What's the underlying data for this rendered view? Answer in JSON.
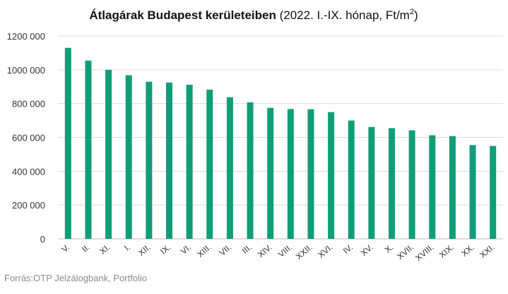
{
  "chart_data": {
    "type": "bar",
    "title": "Átlagárak Budapest kerületeiben",
    "subtitle": "(2022. I.-IX. hónap, Ft/m",
    "subtitle_sup": "2",
    "subtitle_end": ")",
    "xlabel": "",
    "ylabel": "",
    "ylim": [
      0,
      1200000
    ],
    "yticks": [
      0,
      200000,
      400000,
      600000,
      800000,
      1000000,
      1200000
    ],
    "ytick_labels": [
      "0",
      "200 000",
      "400 000",
      "600 000",
      "800 000",
      "1000 000",
      "1200 000"
    ],
    "grid": true,
    "legend": "none",
    "bar_color": "#0f9e78",
    "grid_color": "#dcdcdc",
    "categories": [
      "V.",
      "II.",
      "XI.",
      "I.",
      "XII.",
      "IX.",
      "VI.",
      "XIII.",
      "VII.",
      "III.",
      "XIV.",
      "VIII.",
      "XXII.",
      "XVI.",
      "IV.",
      "XV.",
      "X.",
      "XVII.",
      "XVIII.",
      "XIX.",
      "XX.",
      "XXI."
    ],
    "values": [
      1130000,
      1055000,
      1000000,
      968000,
      930000,
      925000,
      912000,
      883000,
      838000,
      808000,
      775000,
      768000,
      767000,
      750000,
      700000,
      662000,
      655000,
      642000,
      613000,
      608000,
      555000,
      550000
    ]
  },
  "source": "Forrás:OTP Jelzálogbank, Portfolio"
}
